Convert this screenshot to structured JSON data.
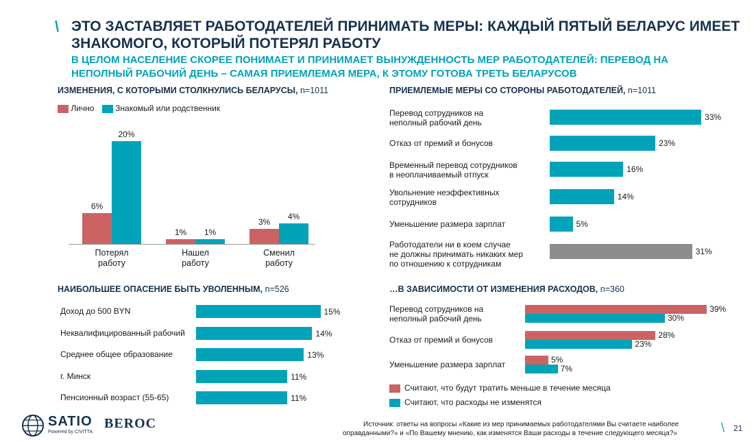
{
  "header": {
    "title_line1": "ЭТО ЗАСТАВЛЯЕТ РАБОТОДАТЕЛЕЙ ПРИНИМАТЬ МЕРЫ: КАЖДЫЙ ПЯТЫЙ БЕЛАРУС ИМЕЕТ",
    "title_line2": "ЗНАКОМОГО, КОТОРЫЙ ПОТЕРЯЛ РАБОТУ",
    "subtitle_line1": "В ЦЕЛОМ НАСЕЛЕНИЕ СКОРЕЕ ПОНИМАЕТ И ПРИНИМАЕТ ВЫНУЖДЕННОСТЬ МЕР РАБОТОДАТЕЛЕЙ: ПЕРЕВОД НА",
    "subtitle_line2": "НЕПОЛНЫЙ РАБОЧИЙ ДЕНЬ – САМАЯ ПРИЕМЛЕМАЯ МЕРА, К ЭТОМУ ГОТОВА ТРЕТЬ БЕЛАРУСОВ",
    "slash": "\\"
  },
  "colors": {
    "teal": "#00a3b8",
    "red": "#cc6363",
    "grey": "#8c8c8c",
    "navy": "#17324d"
  },
  "chart_data": [
    {
      "type": "bar",
      "title": "ИЗМЕНЕНИЯ, С КОТОРЫМИ СТОЛКНУЛИСЬ БЕЛАРУСЫ,",
      "n": "n=1011",
      "categories": [
        [
          "Потерял",
          "работу"
        ],
        [
          "Нашел",
          "работу"
        ],
        [
          "Сменил",
          "работу"
        ]
      ],
      "series": [
        {
          "name": "Лично",
          "color": "red",
          "values": [
            6,
            1,
            3
          ],
          "labels": [
            "6%",
            "1%",
            "3%"
          ]
        },
        {
          "name": "Знакомый или родственник",
          "color": "teal",
          "values": [
            20,
            1,
            4
          ],
          "labels": [
            "20%",
            "1%",
            "4%"
          ]
        }
      ]
    },
    {
      "type": "bar",
      "orientation": "horizontal",
      "title": "ПРИЕМЛЕМЫЕ МЕРЫ СО СТОРОНЫ РАБОТОДАТЕЛЕЙ,",
      "n": "n=1011",
      "categories": [
        [
          "Перевод сотрудников на",
          "неполный рабочий день"
        ],
        [
          "Отказ от премий и бонусов"
        ],
        [
          "Временный перевод сотрудников",
          "в неоплачиваемый отпуск"
        ],
        [
          "Увольнение неэффективных",
          "сотрудников"
        ],
        [
          "Уменьшение размера зарплат"
        ],
        [
          "Работодатели ни в коем случае",
          "не должны принимать никаких мер",
          "по отношению к сотрудникам"
        ]
      ],
      "values": [
        33,
        23,
        16,
        14,
        5,
        31
      ],
      "labels": [
        "33%",
        "23%",
        "16%",
        "14%",
        "5%",
        "31%"
      ],
      "colors": [
        "teal",
        "teal",
        "teal",
        "teal",
        "teal",
        "grey"
      ]
    },
    {
      "type": "bar",
      "orientation": "horizontal",
      "title": "НАИБОЛЬШЕЕ ОПАСЕНИЕ БЫТЬ УВОЛЕННЫМ,",
      "n": "n=526",
      "categories": [
        [
          "Доход до 500 BYN"
        ],
        [
          "Неквалифицированный рабочий"
        ],
        [
          "Среднее общее образование"
        ],
        [
          "г. Минск"
        ],
        [
          "Пенсионный возраст (55-65)"
        ]
      ],
      "values": [
        15,
        14,
        13,
        11,
        11
      ],
      "labels": [
        "15%",
        "14%",
        "13%",
        "11%",
        "11%"
      ]
    },
    {
      "type": "bar",
      "orientation": "horizontal",
      "title": "…В ЗАВИСИМОСТИ ОТ ИЗМЕНЕНИЯ РАСХОДОВ,",
      "n": "n=360",
      "categories": [
        [
          "Перевод сотрудников на",
          "неполный рабочий день"
        ],
        [
          "Отказ от премий и бонусов"
        ],
        [
          "Уменьшение размера зарплат"
        ]
      ],
      "series": [
        {
          "name": "Считают, что будут тратить меньше в течение месяца",
          "color": "red",
          "values": [
            39,
            28,
            5
          ],
          "labels": [
            "39%",
            "28%",
            "5%"
          ]
        },
        {
          "name": "Считают, что расходы не изменятся",
          "color": "teal",
          "values": [
            30,
            23,
            7
          ],
          "labels": [
            "30%",
            "23%",
            "7%"
          ]
        }
      ]
    }
  ],
  "footer": {
    "satio": "SATIO",
    "satio_sub": "Powered by CIVITTA",
    "beroc": "BEROC",
    "source_line1": "Источник: ответы на вопросы «Какие из мер принимаемых работодателями Вы считаете наиболее",
    "source_line2": "оправданными?» и «По Вашему мнению, как изменятся Ваши расходы в течение следующего месяца?»",
    "page_number": "21"
  }
}
